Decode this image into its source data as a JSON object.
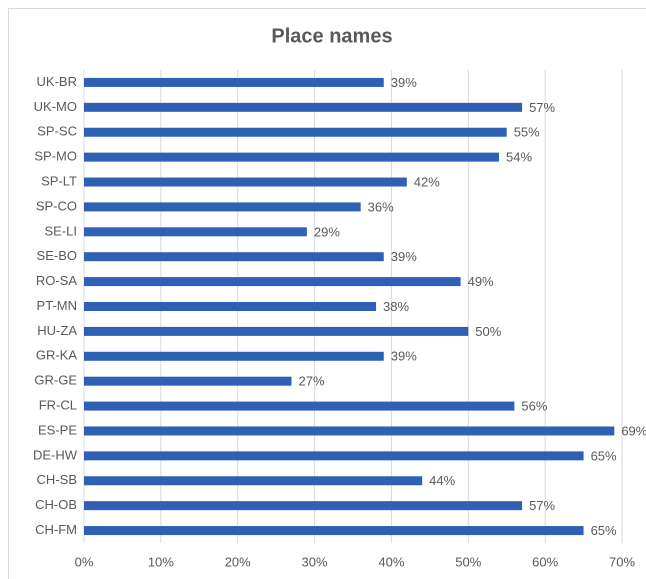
{
  "chart_data": {
    "type": "bar",
    "orientation": "horizontal",
    "title": "Place names",
    "categories": [
      "UK-BR",
      "UK-MO",
      "SP-SC",
      "SP-MO",
      "SP-LT",
      "SP-CO",
      "SE-LI",
      "SE-BO",
      "RO-SA",
      "PT-MN",
      "HU-ZA",
      "GR-KA",
      "GR-GE",
      "FR-CL",
      "ES-PE",
      "DE-HW",
      "CH-SB",
      "CH-OB",
      "CH-FM"
    ],
    "values": [
      39,
      57,
      55,
      54,
      42,
      36,
      29,
      39,
      49,
      38,
      50,
      39,
      27,
      56,
      69,
      65,
      44,
      57,
      65
    ],
    "value_labels": [
      "39%",
      "57%",
      "55%",
      "54%",
      "42%",
      "36%",
      "29%",
      "39%",
      "49%",
      "38%",
      "50%",
      "39%",
      "27%",
      "56%",
      "69%",
      "65%",
      "44%",
      "57%",
      "65%"
    ],
    "color": "#3060b5",
    "xlim": [
      0,
      70
    ],
    "xticks": [
      {
        "value": 0,
        "label": "0%"
      },
      {
        "value": 10,
        "label": "10%"
      },
      {
        "value": 20,
        "label": "20%"
      },
      {
        "value": 30,
        "label": "30%"
      },
      {
        "value": 40,
        "label": "40%"
      },
      {
        "value": 50,
        "label": "50%"
      },
      {
        "value": 60,
        "label": "60%"
      },
      {
        "value": 70,
        "label": "70%"
      }
    ],
    "grid": true
  }
}
